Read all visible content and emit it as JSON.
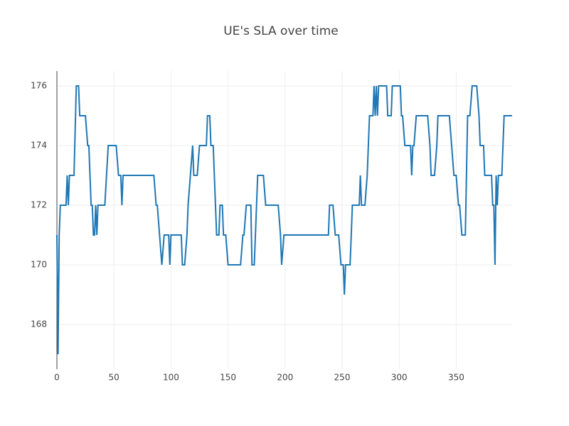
{
  "chart_data": {
    "type": "line",
    "title": "UE's SLA over time",
    "x": [
      0,
      1,
      2,
      3,
      8,
      9,
      10,
      11,
      15,
      17,
      19,
      20,
      25,
      27,
      28,
      30,
      31,
      32,
      33,
      34,
      35,
      36,
      42,
      45,
      52,
      54,
      56,
      57,
      58,
      85,
      87,
      88,
      92,
      94,
      98,
      99,
      100,
      109,
      110,
      112,
      114,
      115,
      117,
      119,
      120,
      123,
      125,
      131,
      132,
      134,
      135,
      137,
      138,
      140,
      142,
      143,
      145,
      146,
      148,
      150,
      161,
      163,
      164,
      166,
      170,
      171,
      173,
      175,
      176,
      181,
      183,
      194,
      196,
      197,
      199,
      238,
      239,
      242,
      244,
      247,
      249,
      251,
      252,
      253,
      257,
      259,
      265,
      266,
      267,
      270,
      272,
      274,
      277,
      278,
      279,
      280,
      281,
      282,
      289,
      290,
      293,
      294,
      301,
      302,
      303,
      305,
      310,
      311,
      312,
      313,
      315,
      325,
      327,
      328,
      331,
      333,
      334,
      344,
      346,
      348,
      350,
      352,
      353,
      355,
      358,
      359,
      360,
      362,
      364,
      368,
      370,
      371,
      374,
      375,
      381,
      382,
      383,
      384,
      385,
      386,
      387,
      390,
      392,
      399
    ],
    "series": [
      {
        "color": "#1f77b4",
        "values": [
          171,
          167,
          171,
          172,
          172,
          173,
          172,
          173,
          173,
          176,
          176,
          175,
          175,
          174,
          174,
          172,
          172,
          171,
          171,
          172,
          171,
          172,
          172,
          174,
          174,
          173,
          173,
          172,
          173,
          173,
          172,
          172,
          170,
          171,
          171,
          170,
          171,
          171,
          170,
          170,
          171,
          172,
          173,
          174,
          173,
          173,
          174,
          174,
          175,
          175,
          174,
          174,
          173,
          171,
          171,
          172,
          172,
          171,
          171,
          170,
          170,
          171,
          171,
          172,
          172,
          170,
          170,
          172,
          173,
          173,
          172,
          172,
          171,
          170,
          171,
          171,
          172,
          172,
          171,
          171,
          170,
          170,
          169,
          170,
          170,
          172,
          172,
          173,
          172,
          172,
          173,
          175,
          175,
          176,
          175,
          176,
          175,
          176,
          176,
          175,
          175,
          176,
          176,
          175,
          175,
          174,
          174,
          173,
          174,
          174,
          175,
          175,
          174,
          173,
          173,
          174,
          175,
          175,
          174,
          173,
          173,
          172,
          172,
          171,
          171,
          173,
          175,
          175,
          176,
          176,
          175,
          174,
          174,
          173,
          173,
          172,
          172,
          170,
          173,
          172,
          173,
          173,
          175,
          175
        ]
      }
    ],
    "xlim": [
      0,
      399
    ],
    "ylim": [
      166.5,
      176.5
    ],
    "xticks": [
      0,
      50,
      100,
      150,
      200,
      250,
      300,
      350
    ],
    "yticks": [
      168,
      170,
      172,
      174,
      176
    ],
    "grid": true
  }
}
